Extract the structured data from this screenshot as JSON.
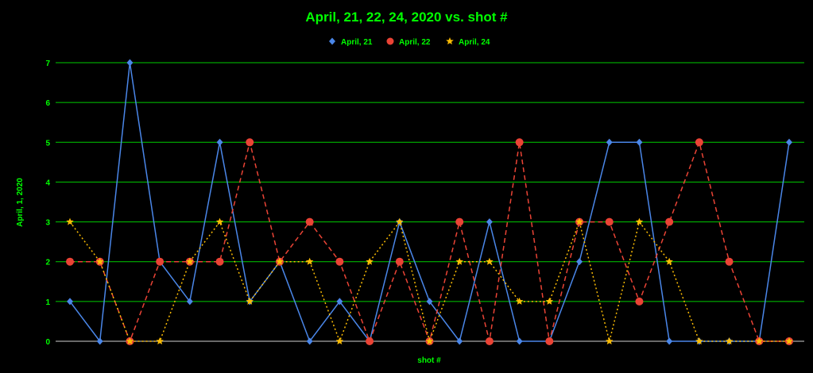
{
  "chart_data": {
    "type": "line",
    "title": "April, 21, 22, 24, 2020 vs. shot #",
    "xlabel": "shot #",
    "ylabel": "April, 1, 2020",
    "ylim": [
      0,
      7
    ],
    "yticks": [
      0,
      1,
      2,
      3,
      4,
      5,
      6,
      7
    ],
    "grid": true,
    "grid_color": "#00cc00",
    "text_color": "#00ff00",
    "legend_position": "top-center",
    "x": [
      1,
      2,
      3,
      4,
      5,
      6,
      7,
      8,
      9,
      10,
      11,
      12,
      13,
      14,
      15,
      16,
      17,
      18,
      19,
      20,
      21,
      22,
      23,
      24,
      25
    ],
    "series": [
      {
        "name": "April, 21",
        "color": "#4a86e8",
        "marker": "diamond",
        "line": "solid",
        "values": [
          1,
          0,
          7,
          2,
          1,
          5,
          1,
          2,
          0,
          1,
          0,
          3,
          1,
          0,
          3,
          0,
          0,
          2,
          5,
          5,
          0,
          0,
          0,
          0,
          5
        ]
      },
      {
        "name": "April, 22",
        "color": "#ea4335",
        "marker": "circle",
        "line": "dashed",
        "values": [
          2,
          2,
          0,
          2,
          2,
          2,
          5,
          2,
          3,
          2,
          0,
          2,
          0,
          3,
          0,
          5,
          0,
          3,
          3,
          1,
          3,
          5,
          2,
          0,
          0
        ]
      },
      {
        "name": "April, 24",
        "color": "#fbbc04",
        "marker": "star",
        "line": "dotted",
        "values": [
          3,
          2,
          0,
          0,
          2,
          3,
          1,
          2,
          2,
          0,
          2,
          3,
          0,
          2,
          2,
          1,
          1,
          3,
          0,
          3,
          2,
          0,
          0,
          0,
          0
        ]
      }
    ]
  }
}
